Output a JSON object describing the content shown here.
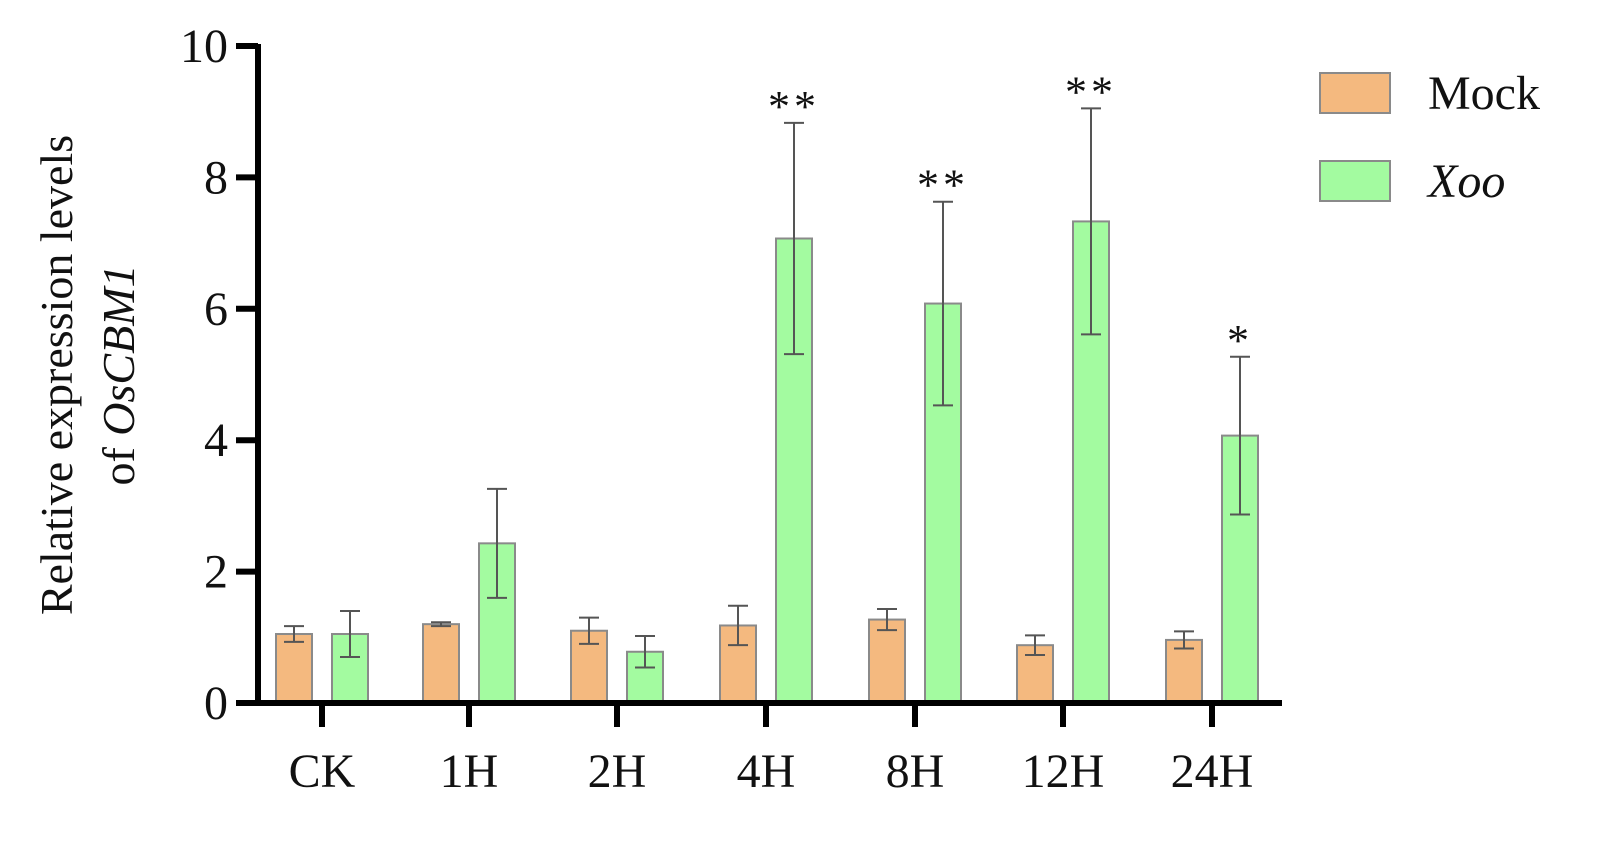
{
  "chart_data": {
    "type": "bar",
    "categories": [
      "CK",
      "1H",
      "2H",
      "4H",
      "8H",
      "12H",
      "24H"
    ],
    "series": [
      {
        "name": "Mock",
        "color": "#F4B97F",
        "values": [
          1.05,
          1.2,
          1.1,
          1.18,
          1.27,
          0.88,
          0.96
        ],
        "errors": [
          0.12,
          0.03,
          0.2,
          0.3,
          0.16,
          0.15,
          0.13
        ]
      },
      {
        "name": "Xoo",
        "color": "#A3FBA0",
        "values": [
          1.05,
          2.43,
          0.78,
          7.07,
          6.08,
          7.33,
          4.07
        ],
        "errors": [
          0.35,
          0.83,
          0.24,
          1.76,
          1.55,
          1.72,
          1.2
        ]
      }
    ],
    "significance": [
      "",
      "",
      "",
      "**",
      "**",
      "**",
      "*"
    ],
    "ylabel_line1": "Relative expression levels",
    "ylabel_line2_prefix": "of ",
    "ylabel_line2_gene": "OsCBM1",
    "ylim": [
      0,
      10
    ],
    "yticks": [
      0,
      2,
      4,
      6,
      8,
      10
    ],
    "legend_position": "top-right",
    "grid": false,
    "bar_border_color": "#8a8a8a",
    "axis_color": "#000000",
    "errorbar_color": "#555555"
  }
}
